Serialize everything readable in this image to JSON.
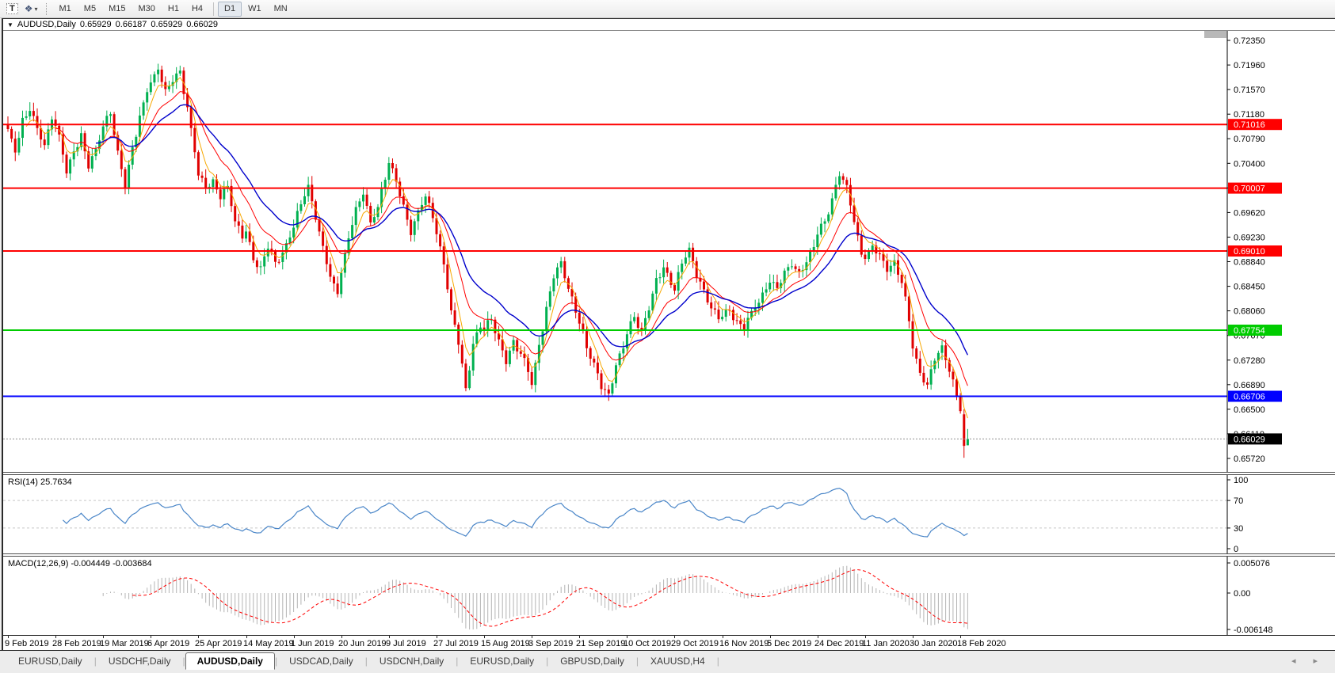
{
  "toolbar": {
    "text_tool_label": "T",
    "timeframes": [
      "M1",
      "M5",
      "M15",
      "M30",
      "H1",
      "H4",
      "D1",
      "W1",
      "MN"
    ],
    "active_timeframe": "D1"
  },
  "window": {
    "title": "AUDUSD,Daily",
    "open": "0.65929",
    "high": "0.66187",
    "low": "0.65929",
    "close": "0.66029"
  },
  "rsi_panel": {
    "label": "RSI(14)",
    "value": "25.7634",
    "scale_labels": [
      "100",
      "70",
      "30",
      "0"
    ],
    "scale_values": [
      100,
      70,
      30,
      0
    ],
    "level_lines": [
      70,
      30
    ],
    "range": [
      0,
      100
    ],
    "line_color": "#4a86c8"
  },
  "macd_panel": {
    "label": "MACD(12,26,9)",
    "main_value": "-0.004449",
    "signal_value": "-0.003684",
    "scale_max": "0.005076",
    "scale_zero": "0.00",
    "scale_min": "-0.006148",
    "range": [
      -0.006148,
      0.005076
    ],
    "histogram_color": "#b4b4b4",
    "signal_color": "#ff0000"
  },
  "date_axis": {
    "labels": [
      "9 Feb 2019",
      "28 Feb 2019",
      "19 Mar 2019",
      "6 Apr 2019",
      "25 Apr 2019",
      "14 May 2019",
      "1 Jun 2019",
      "20 Jun 2019",
      "9 Jul 2019",
      "27 Jul 2019",
      "15 Aug 2019",
      "3 Sep 2019",
      "21 Sep 2019",
      "10 Oct 2019",
      "29 Oct 2019",
      "16 Nov 2019",
      "5 Dec 2019",
      "24 Dec 2019",
      "11 Jan 2020",
      "30 Jan 2020",
      "18 Feb 2020"
    ]
  },
  "tabs": {
    "items": [
      {
        "label": "EURUSD,Daily",
        "active": false
      },
      {
        "label": "USDCHF,Daily",
        "active": false
      },
      {
        "label": "AUDUSD,Daily",
        "active": true
      },
      {
        "label": "USDCAD,Daily",
        "active": false
      },
      {
        "label": "USDCNH,Daily",
        "active": false
      },
      {
        "label": "EURUSD,Daily",
        "active": false
      },
      {
        "label": "GBPUSD,Daily",
        "active": false
      },
      {
        "label": "XAUUSD,H4",
        "active": false
      }
    ]
  },
  "chart_data": {
    "type": "candlestick",
    "symbol": "AUDUSD",
    "timeframe": "Daily",
    "bars": 263,
    "bar_label_step": 13,
    "candle_up_color": "#00b050",
    "candle_down_color": "#e00000",
    "price_axis": {
      "min": 0.6572,
      "max": 0.7235,
      "tick_step": 0.0039,
      "ticks": [
        "0.72350",
        "0.71960",
        "0.71570",
        "0.71180",
        "0.70790",
        "0.70400",
        "0.70010",
        "0.69620",
        "0.69230",
        "0.68840",
        "0.68450",
        "0.68060",
        "0.67670",
        "0.67280",
        "0.66890",
        "0.66500",
        "0.66110",
        "0.65720"
      ]
    },
    "h_lines": [
      {
        "price": 0.71016,
        "label": "0.71016",
        "color": "#ff0000",
        "width": 2
      },
      {
        "price": 0.70007,
        "label": "0.70007",
        "color": "#ff0000",
        "width": 2
      },
      {
        "price": 0.6901,
        "label": "0.69010",
        "color": "#ff0000",
        "width": 2
      },
      {
        "price": 0.67754,
        "label": "0.67754",
        "color": "#00cc00",
        "width": 2
      },
      {
        "price": 0.66706,
        "label": "0.66706",
        "color": "#0000ff",
        "width": 2
      }
    ],
    "current_price": {
      "price": 0.66029,
      "label": "0.66029",
      "box_color": "#000000",
      "line_color": "#909090"
    },
    "ma_lines": [
      {
        "name": "fast-ma",
        "period": 5,
        "color": "#f7a800",
        "width": 1
      },
      {
        "name": "medium-ma",
        "period": 13,
        "color": "#ff0000",
        "width": 1
      },
      {
        "name": "slow-ma",
        "period": 24,
        "color": "#0000cc",
        "width": 1.4
      }
    ],
    "close_anchors": [
      [
        0,
        0.709
      ],
      [
        2,
        0.706
      ],
      [
        4,
        0.711
      ],
      [
        6,
        0.7125
      ],
      [
        8,
        0.709
      ],
      [
        10,
        0.7065
      ],
      [
        12,
        0.7118
      ],
      [
        14,
        0.7085
      ],
      [
        16,
        0.7025
      ],
      [
        18,
        0.7055
      ],
      [
        20,
        0.7085
      ],
      [
        22,
        0.704
      ],
      [
        24,
        0.706
      ],
      [
        26,
        0.7095
      ],
      [
        28,
        0.7122
      ],
      [
        30,
        0.706
      ],
      [
        32,
        0.7008
      ],
      [
        34,
        0.706
      ],
      [
        36,
        0.711
      ],
      [
        38,
        0.716
      ],
      [
        41,
        0.7192
      ],
      [
        43,
        0.715
      ],
      [
        45,
        0.717
      ],
      [
        47,
        0.7188
      ],
      [
        49,
        0.713
      ],
      [
        51,
        0.706
      ],
      [
        52,
        0.702
      ],
      [
        54,
        0.7
      ],
      [
        56,
        0.7015
      ],
      [
        58,
        0.699
      ],
      [
        60,
        0.7
      ],
      [
        62,
        0.6945
      ],
      [
        64,
        0.6925
      ],
      [
        65,
        0.6935
      ],
      [
        67,
        0.689
      ],
      [
        69,
        0.687
      ],
      [
        71,
        0.6905
      ],
      [
        73,
        0.6885
      ],
      [
        75,
        0.69
      ],
      [
        77,
        0.6925
      ],
      [
        78,
        0.6935
      ],
      [
        80,
        0.6975
      ],
      [
        82,
        0.7002
      ],
      [
        84,
        0.696
      ],
      [
        86,
        0.6905
      ],
      [
        88,
        0.6855
      ],
      [
        90,
        0.6835
      ],
      [
        91,
        0.687
      ],
      [
        93,
        0.6925
      ],
      [
        95,
        0.6965
      ],
      [
        97,
        0.699
      ],
      [
        99,
        0.6945
      ],
      [
        101,
        0.6975
      ],
      [
        103,
        0.702
      ],
      [
        104,
        0.704
      ],
      [
        106,
        0.701
      ],
      [
        108,
        0.697
      ],
      [
        110,
        0.6935
      ],
      [
        112,
        0.6965
      ],
      [
        114,
        0.6985
      ],
      [
        116,
        0.6955
      ],
      [
        117,
        0.693
      ],
      [
        119,
        0.6885
      ],
      [
        121,
        0.6805
      ],
      [
        123,
        0.6755
      ],
      [
        125,
        0.668
      ],
      [
        127,
        0.6755
      ],
      [
        129,
        0.6785
      ],
      [
        130,
        0.6775
      ],
      [
        132,
        0.679
      ],
      [
        134,
        0.6755
      ],
      [
        136,
        0.673
      ],
      [
        138,
        0.676
      ],
      [
        140,
        0.6735
      ],
      [
        142,
        0.671
      ],
      [
        143,
        0.669
      ],
      [
        145,
        0.6755
      ],
      [
        147,
        0.681
      ],
      [
        149,
        0.686
      ],
      [
        151,
        0.688
      ],
      [
        153,
        0.6845
      ],
      [
        155,
        0.681
      ],
      [
        156,
        0.679
      ],
      [
        158,
        0.6745
      ],
      [
        160,
        0.672
      ],
      [
        162,
        0.669
      ],
      [
        164,
        0.6675
      ],
      [
        166,
        0.672
      ],
      [
        168,
        0.6745
      ],
      [
        169,
        0.677
      ],
      [
        171,
        0.68
      ],
      [
        173,
        0.6775
      ],
      [
        175,
        0.681
      ],
      [
        177,
        0.685
      ],
      [
        179,
        0.6875
      ],
      [
        181,
        0.6855
      ],
      [
        182,
        0.6845
      ],
      [
        184,
        0.688
      ],
      [
        186,
        0.69
      ],
      [
        188,
        0.6865
      ],
      [
        190,
        0.684
      ],
      [
        192,
        0.681
      ],
      [
        194,
        0.679
      ],
      [
        195,
        0.6795
      ],
      [
        197,
        0.681
      ],
      [
        199,
        0.679
      ],
      [
        201,
        0.678
      ],
      [
        203,
        0.68
      ],
      [
        205,
        0.682
      ],
      [
        207,
        0.6845
      ],
      [
        208,
        0.6855
      ],
      [
        210,
        0.684
      ],
      [
        212,
        0.6865
      ],
      [
        214,
        0.688
      ],
      [
        216,
        0.687
      ],
      [
        218,
        0.6885
      ],
      [
        220,
        0.6905
      ],
      [
        221,
        0.6925
      ],
      [
        223,
        0.695
      ],
      [
        225,
        0.6985
      ],
      [
        227,
        0.7025
      ],
      [
        229,
        0.7
      ],
      [
        231,
        0.6945
      ],
      [
        233,
        0.69
      ],
      [
        234,
        0.6895
      ],
      [
        236,
        0.691
      ],
      [
        238,
        0.689
      ],
      [
        240,
        0.687
      ],
      [
        242,
        0.6885
      ],
      [
        244,
        0.6855
      ],
      [
        246,
        0.679
      ],
      [
        247,
        0.6745
      ],
      [
        249,
        0.6705
      ],
      [
        251,
        0.669
      ],
      [
        253,
        0.6735
      ],
      [
        255,
        0.6745
      ],
      [
        257,
        0.671
      ],
      [
        259,
        0.6675
      ],
      [
        260,
        0.6655
      ],
      [
        261,
        0.6592
      ],
      [
        262,
        0.66029
      ]
    ],
    "final_candles": [
      {
        "open": 0.6642,
        "high": 0.665,
        "low": 0.6573,
        "close": 0.6592
      },
      {
        "open": 0.65929,
        "high": 0.66187,
        "low": 0.65929,
        "close": 0.66029
      }
    ]
  }
}
